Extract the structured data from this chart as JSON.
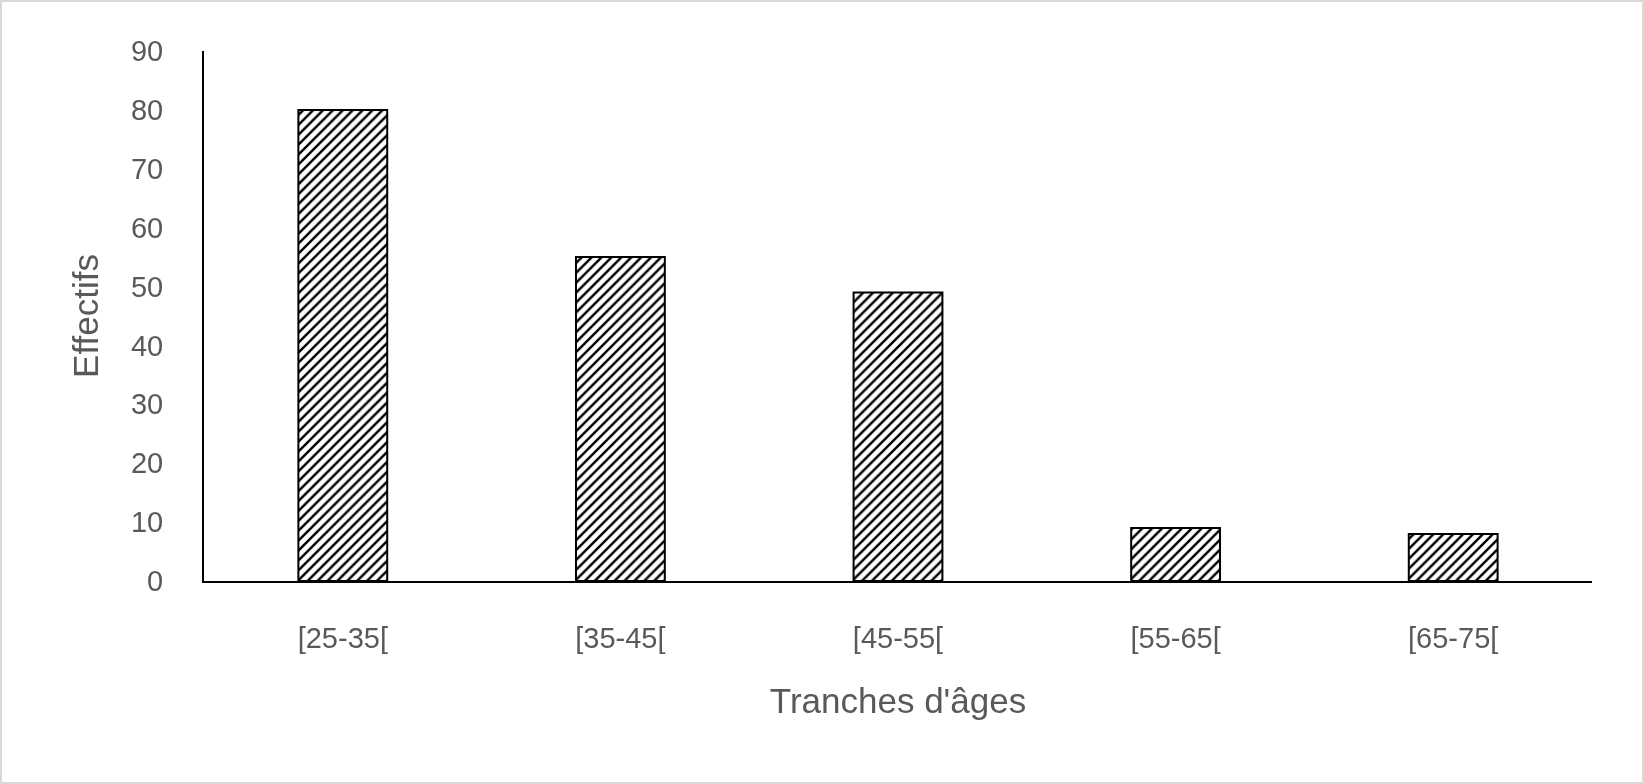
{
  "chart_data": {
    "type": "bar",
    "xlabel": "Tranches d'âges",
    "ylabel": "Effectifs",
    "categories": [
      "[25-35[",
      "[35-45[",
      "[45-55[",
      "[55-65[",
      "[65-75["
    ],
    "values": [
      80,
      55,
      49,
      9,
      8
    ],
    "color": "#000000",
    "ylim": [
      0,
      90
    ],
    "yticks": [
      0,
      10,
      20,
      30,
      40,
      50,
      60,
      70,
      80,
      90
    ]
  }
}
